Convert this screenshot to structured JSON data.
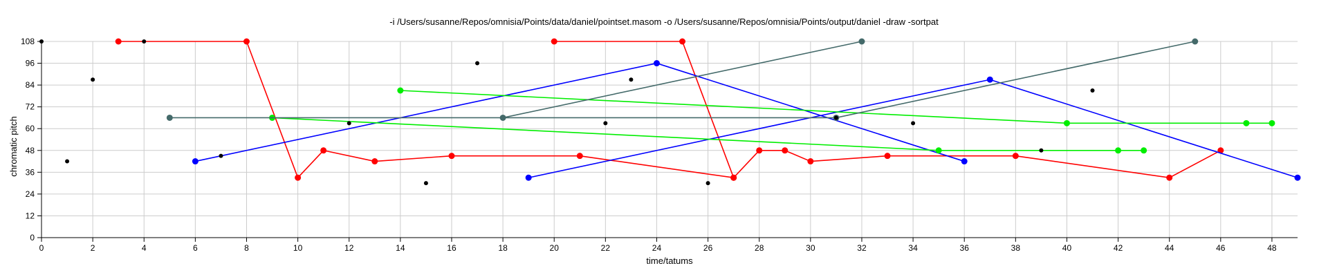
{
  "chart_data": {
    "type": "scatter",
    "title": "-i /Users/susanne/Repos/omnisia/Points/data/daniel/pointset.masom -o /Users/susanne/Repos/omnisia/Points/output/daniel -draw -sortpat",
    "xlabel": "time/tatums",
    "ylabel": "chromatic pitch",
    "xlim": [
      0,
      49
    ],
    "ylim": [
      0,
      108
    ],
    "xticks": [
      0,
      2,
      4,
      6,
      8,
      10,
      12,
      14,
      16,
      18,
      20,
      22,
      24,
      26,
      28,
      30,
      32,
      34,
      36,
      38,
      40,
      42,
      44,
      46,
      48
    ],
    "yticks": [
      0,
      12,
      24,
      36,
      48,
      60,
      72,
      84,
      96,
      108
    ],
    "grid": true,
    "points": {
      "color": "#000000",
      "x": [
        0,
        1,
        2,
        4,
        7,
        12,
        15,
        17,
        22,
        23,
        26,
        31,
        34,
        39,
        41
      ],
      "y": [
        108,
        42,
        87,
        108,
        45,
        63,
        30,
        96,
        63,
        87,
        30,
        66,
        63,
        48,
        81
      ]
    },
    "series": [
      {
        "color": "#ff0000",
        "x": [
          3,
          8,
          10,
          11,
          13,
          16,
          21,
          27,
          28,
          29,
          30,
          33,
          38,
          44,
          46
        ],
        "y": [
          108,
          108,
          33,
          48,
          42,
          45,
          45,
          33,
          48,
          48,
          42,
          45,
          45,
          33,
          48
        ],
        "segments": [
          [
            3,
            8
          ],
          [
            8,
            10
          ],
          [
            10,
            11
          ],
          [
            11,
            13
          ],
          [
            13,
            16
          ],
          [
            16,
            21
          ],
          [
            21,
            27
          ],
          [
            27,
            28
          ],
          [
            28,
            29
          ],
          [
            29,
            30
          ],
          [
            30,
            33
          ],
          [
            33,
            38
          ],
          [
            38,
            44
          ],
          [
            44,
            46
          ]
        ]
      },
      {
        "color": "#ff0000",
        "x": [
          20,
          25,
          27
        ],
        "y": [
          108,
          108,
          33
        ],
        "segments": [
          [
            20,
            25
          ],
          [
            25,
            27
          ]
        ]
      },
      {
        "color": "#0000ff",
        "x": [
          6,
          24,
          36
        ],
        "y": [
          42,
          96,
          42
        ]
      },
      {
        "color": "#0000ff",
        "x": [
          19,
          37,
          49
        ],
        "y": [
          33,
          87,
          33
        ]
      },
      {
        "color": "#00ee00",
        "x": [
          9,
          35,
          42,
          43
        ],
        "y": [
          66,
          48,
          48,
          48
        ]
      },
      {
        "color": "#00ee00",
        "x": [
          14,
          40,
          47,
          48
        ],
        "y": [
          81,
          63,
          63,
          63
        ]
      },
      {
        "color": "#446a6a",
        "x": [
          5,
          18,
          32
        ],
        "y": [
          66,
          66,
          108
        ],
        "segments": [
          [
            5,
            31
          ],
          [
            18,
            32
          ]
        ]
      },
      {
        "color": "#446a6a",
        "x": [
          31,
          45
        ],
        "y": [
          66,
          108
        ]
      }
    ]
  }
}
